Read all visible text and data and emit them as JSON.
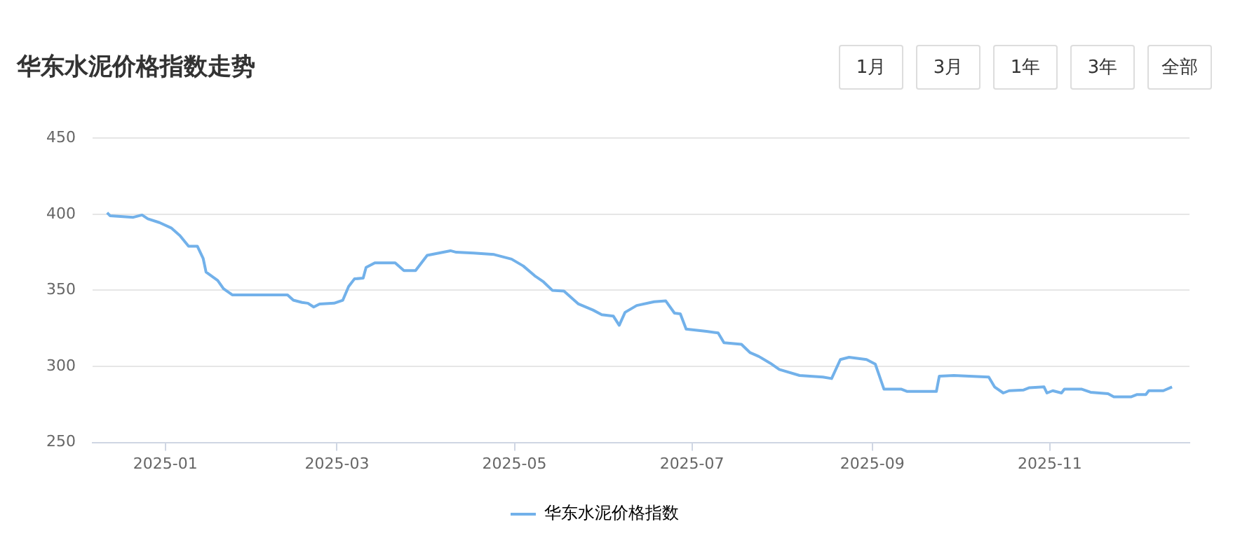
{
  "chart_data": {
    "type": "line",
    "title": "华东水泥价格指数走势",
    "annotations": [
      "1月",
      "3月",
      "1年",
      "3年",
      "全部"
    ],
    "x": [
      "2024-12-12",
      "2024-12-13",
      "2024-12-21",
      "2024-12-24",
      "2024-12-26",
      "2024-12-30",
      "2025-01-03",
      "2025-01-06",
      "2025-01-09",
      "2025-01-12",
      "2025-01-14",
      "2025-01-15",
      "2025-01-19",
      "2025-01-21",
      "2025-01-24",
      "2025-02-12",
      "2025-02-14",
      "2025-02-17",
      "2025-02-19",
      "2025-02-21",
      "2025-02-23",
      "2025-02-28",
      "2025-03-03",
      "2025-03-05",
      "2025-03-07",
      "2025-03-10",
      "2025-03-11",
      "2025-03-14",
      "2025-03-21",
      "2025-03-24",
      "2025-03-28",
      "2025-04-01",
      "2025-04-09",
      "2025-04-11",
      "2025-04-17",
      "2025-04-24",
      "2025-04-30",
      "2025-05-04",
      "2025-05-08",
      "2025-05-11",
      "2025-05-14",
      "2025-05-18",
      "2025-05-23",
      "2025-05-28",
      "2025-05-31",
      "2025-06-04",
      "2025-06-06",
      "2025-06-08",
      "2025-06-12",
      "2025-06-18",
      "2025-06-22",
      "2025-06-25",
      "2025-06-27",
      "2025-06-29",
      "2025-07-06",
      "2025-07-10",
      "2025-07-12",
      "2025-07-18",
      "2025-07-21",
      "2025-07-24",
      "2025-07-28",
      "2025-07-31",
      "2025-08-07",
      "2025-08-15",
      "2025-08-18",
      "2025-08-21",
      "2025-08-24",
      "2025-08-30",
      "2025-09-02",
      "2025-09-03",
      "2025-09-05",
      "2025-09-11",
      "2025-09-13",
      "2025-09-23",
      "2025-09-24",
      "2025-09-29",
      "2025-10-11",
      "2025-10-13",
      "2025-10-16",
      "2025-10-18",
      "2025-10-23",
      "2025-10-25",
      "2025-10-30",
      "2025-10-31",
      "2025-11-02",
      "2025-11-05",
      "2025-11-06",
      "2025-11-12",
      "2025-11-15",
      "2025-11-21",
      "2025-11-23",
      "2025-11-29",
      "2025-12-01",
      "2025-12-04",
      "2025-12-05",
      "2025-12-10",
      "2025-12-13"
    ],
    "series": [
      {
        "name": "华东水泥价格指数",
        "color": "#72b1ea",
        "values": [
          401,
          399,
          398,
          399.5,
          397,
          394.5,
          391,
          386,
          379,
          379,
          371,
          362,
          356.5,
          351,
          347,
          347,
          343.5,
          342,
          341.5,
          339,
          341,
          341.5,
          343.5,
          352.5,
          357.5,
          358,
          365,
          368,
          368,
          363,
          363,
          373,
          376,
          375,
          374.5,
          373.5,
          370.5,
          366,
          359.5,
          355.5,
          350,
          349.5,
          341,
          337,
          334,
          333,
          327,
          335.5,
          340,
          342.5,
          343,
          335,
          334.5,
          324.5,
          323,
          322,
          315.5,
          314.5,
          309,
          306.5,
          302,
          298,
          294,
          293,
          292,
          304.5,
          306,
          304.5,
          301.5,
          296,
          285,
          285,
          283.5,
          283.5,
          293.5,
          294,
          293,
          286.5,
          282.5,
          284,
          284.5,
          286,
          286.5,
          282.5,
          284,
          282.5,
          285,
          285,
          283,
          282,
          280,
          280,
          281.5,
          281.5,
          284,
          284,
          286.5
        ]
      }
    ],
    "xlim": [
      "2024-12-07",
      "2025-12-19"
    ],
    "xticks": [
      "2025-01",
      "2025-03",
      "2025-05",
      "2025-07",
      "2025-09",
      "2025-11"
    ],
    "ylim": [
      250,
      450
    ],
    "yticks": [
      250,
      300,
      350,
      400,
      450
    ],
    "grid": "y",
    "legend": "bottom",
    "marker": "none",
    "line_style": "solid"
  }
}
